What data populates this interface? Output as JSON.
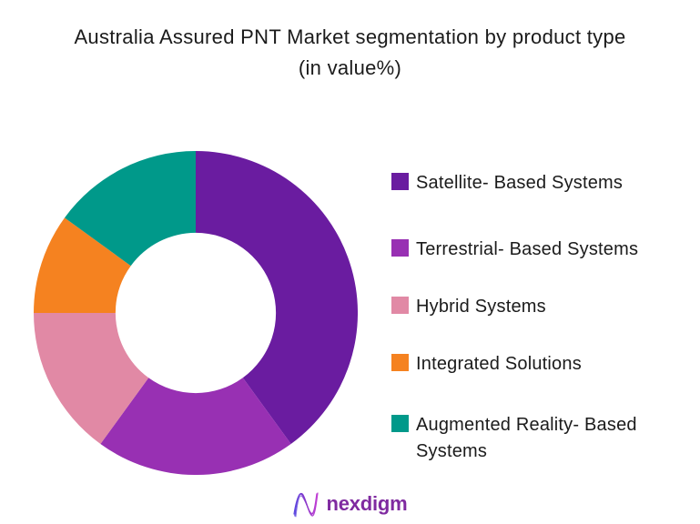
{
  "title": {
    "line1": "Australia Assured PNT Market segmentation by product type",
    "line2": "(in value%)"
  },
  "chart_data": {
    "type": "pie",
    "subtype": "donut",
    "title": "Australia Assured PNT Market segmentation by product type (in value%)",
    "unit": "value %",
    "start_angle_deg": 0,
    "direction": "clockwise",
    "inner_radius_ratio": 0.495,
    "legend_position": "right",
    "slices": [
      {
        "label": "Satellite- Based Systems",
        "value": 40,
        "color": "#6A1CA0"
      },
      {
        "label": "Terrestrial- Based Systems",
        "value": 20,
        "color": "#9830B3"
      },
      {
        "label": "Hybrid Systems",
        "value": 15,
        "color": "#E189A5"
      },
      {
        "label": "Integrated Solutions",
        "value": 10,
        "color": "#F58220"
      },
      {
        "label": "Augmented Reality- Based Systems",
        "value": 15,
        "color": "#00998A"
      }
    ]
  },
  "footer": {
    "brand": "nexdigm",
    "brand_color": "#7F2AA0"
  }
}
